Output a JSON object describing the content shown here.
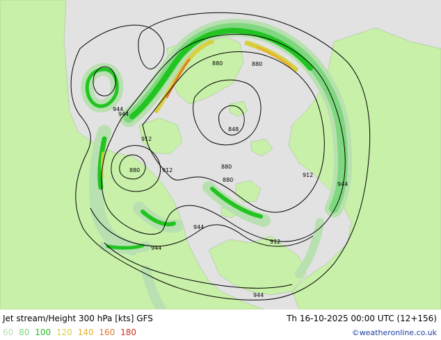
{
  "header": {
    "title": "Jet stream/Height 300 hPa [kts] GFS",
    "valid_time": "Th 16-10-2025 00:00 UTC (12+156)"
  },
  "legend": {
    "items": [
      {
        "label": "60",
        "color": "#b8e0b0"
      },
      {
        "label": "80",
        "color": "#7fd87f"
      },
      {
        "label": "100",
        "color": "#22c422"
      },
      {
        "label": "120",
        "color": "#d8d040"
      },
      {
        "label": "140",
        "color": "#e8b030"
      },
      {
        "label": "160",
        "color": "#e07a30"
      },
      {
        "label": "180",
        "color": "#d03020"
      }
    ]
  },
  "credit": "©weatheronline.co.uk",
  "map": {
    "colors": {
      "ocean": "#e2e2e2",
      "land": "#c8f0a8",
      "contour": "#000000"
    },
    "contour_labels": {
      "l1": "880",
      "l2": "880",
      "l3": "944",
      "l4": "944",
      "l5": "912",
      "l6": "848",
      "l7": "880",
      "l8": "912",
      "l9": "880",
      "l10": "880",
      "l11": "912",
      "l12": "944",
      "l13": "944",
      "l14": "944",
      "l15": "912",
      "l16": "944"
    }
  }
}
